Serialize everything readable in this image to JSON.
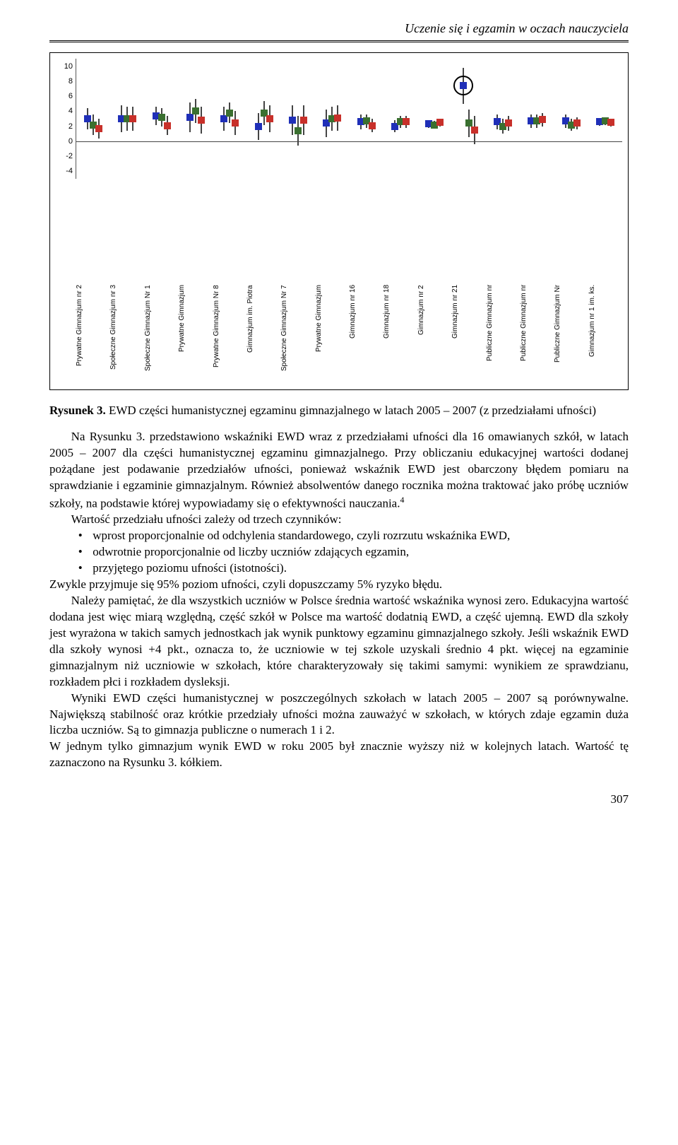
{
  "header": {
    "title": "Uczenie się i egzamin w oczach nauczyciela"
  },
  "chart": {
    "type": "scatter-ci",
    "y_axis": {
      "min": -5,
      "max": 11,
      "ticks": [
        -4,
        -2,
        0,
        2,
        4,
        6,
        8,
        10
      ]
    },
    "series_colors": {
      "y2005": "#1f2fb8",
      "y2006": "#3a7030",
      "y2007": "#c8302a"
    },
    "ci_color": "#444444",
    "marker_size": 10,
    "circle_annotation": {
      "group_index": 11,
      "series": "y2005"
    },
    "groups": [
      {
        "label": "Prywatne Gimnazjum nr 2",
        "y2005": {
          "v": 3.0,
          "lo": 1.6,
          "hi": 4.4
        },
        "y2006": {
          "v": 2.2,
          "lo": 0.8,
          "hi": 3.6
        },
        "y2007": {
          "v": 1.7,
          "lo": 0.4,
          "hi": 3.0
        }
      },
      {
        "label": "Społeczne Gimnazjum nr 3",
        "y2005": {
          "v": 3.0,
          "lo": 1.2,
          "hi": 4.8
        },
        "y2006": {
          "v": 3.0,
          "lo": 1.4,
          "hi": 4.6
        },
        "y2007": {
          "v": 3.0,
          "lo": 1.4,
          "hi": 4.6
        }
      },
      {
        "label": "Społeczne Gimnazjum Nr 1",
        "y2005": {
          "v": 3.4,
          "lo": 2.2,
          "hi": 4.6
        },
        "y2006": {
          "v": 3.2,
          "lo": 2.0,
          "hi": 4.4
        },
        "y2007": {
          "v": 2.1,
          "lo": 0.8,
          "hi": 3.4
        }
      },
      {
        "label": "Prywatne Gimnazjum",
        "y2005": {
          "v": 3.2,
          "lo": 1.2,
          "hi": 5.2
        },
        "y2006": {
          "v": 4.0,
          "lo": 2.4,
          "hi": 5.6
        },
        "y2007": {
          "v": 2.8,
          "lo": 1.0,
          "hi": 4.6
        }
      },
      {
        "label": "Prywatne Gimnazjum Nr 8",
        "y2005": {
          "v": 3.0,
          "lo": 1.4,
          "hi": 4.6
        },
        "y2006": {
          "v": 3.8,
          "lo": 2.4,
          "hi": 5.2
        },
        "y2007": {
          "v": 2.4,
          "lo": 0.8,
          "hi": 4.0
        }
      },
      {
        "label": "Gimnazjum im. Piotra",
        "y2005": {
          "v": 2.0,
          "lo": 0.2,
          "hi": 3.8
        },
        "y2006": {
          "v": 3.8,
          "lo": 2.2,
          "hi": 5.4
        },
        "y2007": {
          "v": 3.0,
          "lo": 1.2,
          "hi": 4.8
        }
      },
      {
        "label": "Społeczne Gimnazjum Nr 7",
        "y2005": {
          "v": 2.8,
          "lo": 0.8,
          "hi": 4.8
        },
        "y2006": {
          "v": 1.4,
          "lo": -0.6,
          "hi": 3.4
        },
        "y2007": {
          "v": 2.8,
          "lo": 0.8,
          "hi": 4.8
        }
      },
      {
        "label": "Prywatne Gimnazjum",
        "y2005": {
          "v": 2.4,
          "lo": 0.6,
          "hi": 4.2
        },
        "y2006": {
          "v": 3.0,
          "lo": 1.4,
          "hi": 4.6
        },
        "y2007": {
          "v": 3.1,
          "lo": 1.4,
          "hi": 4.8
        }
      },
      {
        "label": "Gimnazjum nr 16",
        "y2005": {
          "v": 2.6,
          "lo": 1.6,
          "hi": 3.6
        },
        "y2006": {
          "v": 2.7,
          "lo": 1.8,
          "hi": 3.6
        },
        "y2007": {
          "v": 2.1,
          "lo": 1.2,
          "hi": 3.0
        }
      },
      {
        "label": "Gimnazjum nr 18",
        "y2005": {
          "v": 2.0,
          "lo": 1.2,
          "hi": 2.8
        },
        "y2006": {
          "v": 2.6,
          "lo": 1.8,
          "hi": 3.4
        },
        "y2007": {
          "v": 2.6,
          "lo": 1.8,
          "hi": 3.4
        }
      },
      {
        "label": "Gimnazjum nr 2",
        "y2005": {
          "v": 2.3,
          "lo": 1.8,
          "hi": 2.8
        },
        "y2006": {
          "v": 2.2,
          "lo": 1.7,
          "hi": 2.7
        },
        "y2007": {
          "v": 2.5,
          "lo": 2.0,
          "hi": 3.0
        }
      },
      {
        "label": "Gimnazjum nr 21",
        "y2005": {
          "v": 7.4,
          "lo": 5.0,
          "hi": 9.8
        },
        "y2006": {
          "v": 2.4,
          "lo": 0.6,
          "hi": 4.2
        },
        "y2007": {
          "v": 1.5,
          "lo": -0.4,
          "hi": 3.4
        }
      },
      {
        "label": "Publiczne Gimnazjum nr",
        "y2005": {
          "v": 2.6,
          "lo": 1.6,
          "hi": 3.6
        },
        "y2006": {
          "v": 2.0,
          "lo": 1.0,
          "hi": 3.0
        },
        "y2007": {
          "v": 2.4,
          "lo": 1.4,
          "hi": 3.4
        }
      },
      {
        "label": "Publiczne Gimnazjum nr",
        "y2005": {
          "v": 2.7,
          "lo": 1.8,
          "hi": 3.6
        },
        "y2006": {
          "v": 2.7,
          "lo": 1.8,
          "hi": 3.6
        },
        "y2007": {
          "v": 2.9,
          "lo": 2.0,
          "hi": 3.8
        }
      },
      {
        "label": "Publiczne Gimnazjum Nr",
        "y2005": {
          "v": 2.7,
          "lo": 1.8,
          "hi": 3.6
        },
        "y2006": {
          "v": 2.2,
          "lo": 1.4,
          "hi": 3.0
        },
        "y2007": {
          "v": 2.4,
          "lo": 1.6,
          "hi": 3.2
        }
      },
      {
        "label": "Gimnazjum nr 1 im. ks.",
        "y2005": {
          "v": 2.6,
          "lo": 2.1,
          "hi": 3.1
        },
        "y2006": {
          "v": 2.7,
          "lo": 2.2,
          "hi": 3.2
        },
        "y2007": {
          "v": 2.5,
          "lo": 2.0,
          "hi": 3.0
        }
      }
    ]
  },
  "caption": {
    "label": "Rysunek 3.",
    "text": "EWD części humanistycznej egzaminu gimnazjalnego w latach 2005 – 2007 (z przedziałami ufności)"
  },
  "body": {
    "p1a": "Na Rysunku 3. przedstawiono wskaźniki EWD wraz z przedziałami ufności dla 16 omawianych szkół, w latach 2005 – 2007 dla części humanistycznej egzaminu gimnazjalnego. Przy obliczaniu edukacyjnej wartości dodanej pożądane jest podawanie przedziałów ufności, ponieważ wskaźnik EWD jest obarczony błędem pomiaru na sprawdzianie i egzaminie gimnazjalnym. Również absolwentów danego rocznika można traktować jako próbę uczniów szkoły, na podstawie której wypowiadamy się o efektywności nauczania.",
    "footnote_mark": "4",
    "p2": "Wartość przedziału ufności zależy od trzech czynników:",
    "bullets": [
      "wprost proporcjonalnie od odchylenia standardowego, czyli rozrzutu wskaźnika EWD,",
      "odwrotnie proporcjonalnie od liczby uczniów zdających egzamin,",
      "przyjętego poziomu ufności (istotności)."
    ],
    "p3": "Zwykle przyjmuje się 95% poziom ufności, czyli dopuszczamy 5% ryzyko błędu.",
    "p4": "Należy pamiętać, że dla wszystkich uczniów w Polsce średnia wartość wskaźnika wynosi zero. Edukacyjna wartość dodana jest więc miarą względną, część szkół w Polsce ma wartość dodatnią EWD, a część ujemną. EWD dla szkoły jest wyrażona w takich samych jednostkach jak wynik punktowy egzaminu gimnazjalnego szkoły. Jeśli wskaźnik EWD dla szkoły wynosi +4 pkt., oznacza to, że uczniowie w tej szkole uzyskali średnio 4 pkt. więcej na egzaminie gimnazjalnym niż uczniowie w szkołach, które charakteryzowały się takimi samymi: wynikiem ze sprawdzianu, rozkładem płci i rozkładem dysleksji.",
    "p5": "Wyniki EWD części humanistycznej w poszczególnych szkołach w latach 2005 – 2007 są porównywalne. Największą stabilność oraz krótkie przedziały ufności można zauważyć w szkołach, w których zdaje egzamin duża liczba uczniów. Są  to gimnazja publiczne o numerach 1 i 2.",
    "p6": "W jednym tylko gimnazjum wynik EWD w roku 2005 był znacznie wyższy niż w kolejnych latach. Wartość tę zaznaczono na Rysunku 3. kółkiem."
  },
  "page_number": "307"
}
